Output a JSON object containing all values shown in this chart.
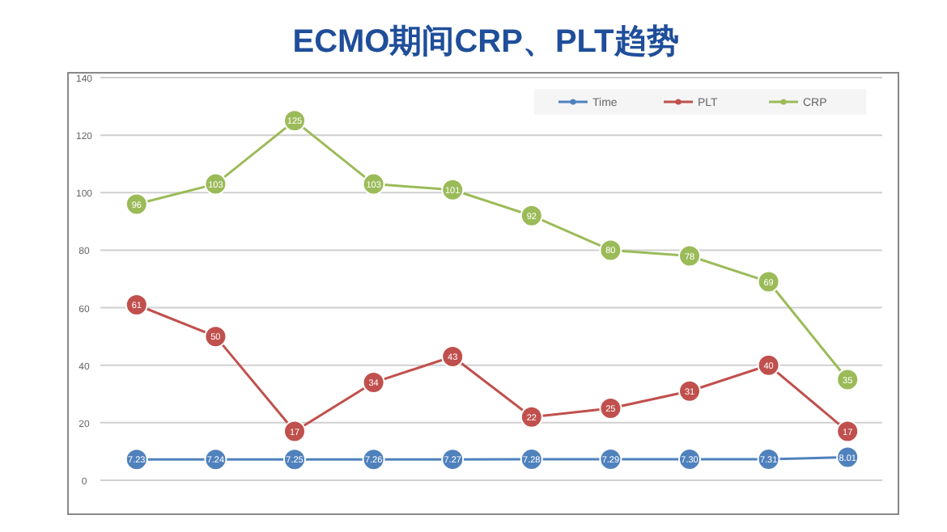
{
  "chart_data": {
    "type": "line",
    "title": "ECMO期间CRP、PLT趋势",
    "categories": [
      null,
      null,
      null,
      null,
      null,
      null,
      null,
      null,
      null,
      null
    ],
    "series": [
      {
        "name": "Time",
        "color": "#4f81bd",
        "values": [
          7.23,
          7.24,
          7.25,
          7.26,
          7.27,
          7.28,
          7.29,
          7.3,
          7.31,
          8.01
        ],
        "value_labels": [
          "7.23",
          "7.24",
          "7.25",
          "7.26",
          "7.27",
          "7.28",
          "7.29",
          "7.30",
          "7.31",
          "8.01"
        ]
      },
      {
        "name": "PLT",
        "color": "#c0504d",
        "values": [
          61,
          50,
          17,
          34,
          43,
          22,
          25,
          31,
          40,
          17
        ]
      },
      {
        "name": "CRP",
        "color": "#9bbb59",
        "values": [
          96,
          103,
          125,
          103,
          101,
          92,
          80,
          78,
          69,
          35
        ]
      }
    ],
    "ylim": [
      0,
      140
    ],
    "yticks": [
      0,
      20,
      40,
      60,
      80,
      100,
      120,
      140
    ],
    "grid": "y",
    "legend": "top right",
    "marker": "circle",
    "line_style": "solid",
    "data_labels": true,
    "tick_labels": "y"
  }
}
